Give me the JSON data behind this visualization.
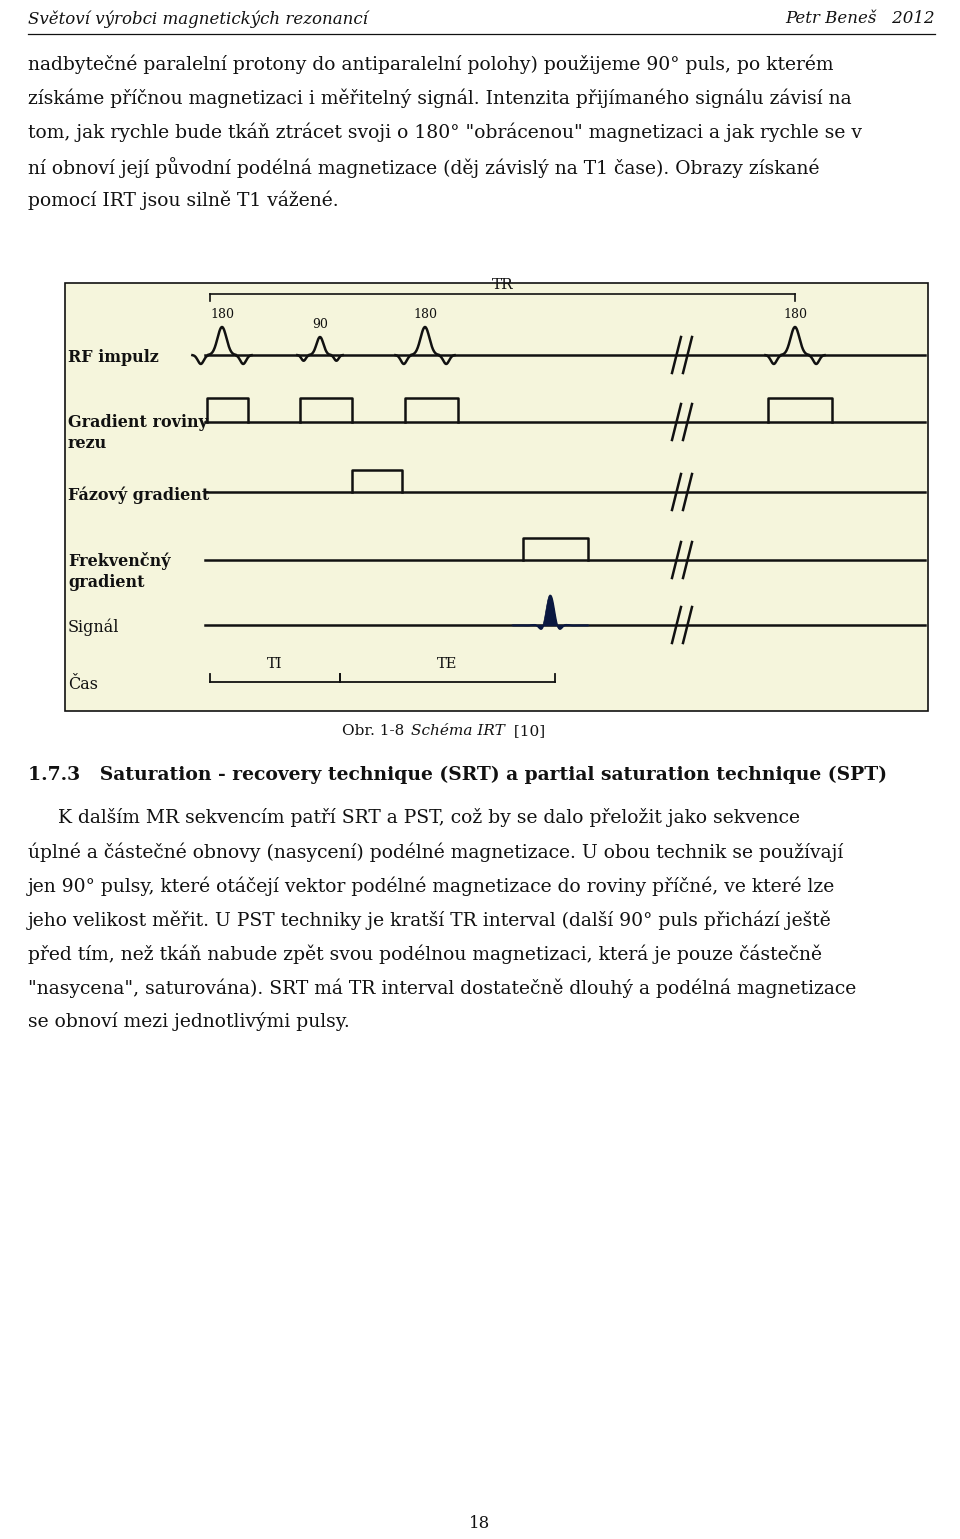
{
  "page_bg": "#ffffff",
  "diag_bg": "#f5f5dc",
  "dark": "#111111",
  "header_left": "Světoví výrobci magnetických rezonancí",
  "header_right": "Petr Beneš   2012",
  "body_lines": [
    "nadbytečné paralelní protony do antiparalelní polohy) použijeme 90° puls, po kterém",
    "získáme příčnou magnetizaci i měřitelný signál. Intenzita přijímaného signálu závisí na",
    "tom, jak rychle bude tkáň ztrácet svoji o 180° \"obrácenou\" magnetizaci a jak rychle se v",
    "ní obnoví její původní podélná magnetizace (děj závislý na T1 čase). Obrazy získané",
    "pomocí IRT jsou silně T1 vážené."
  ],
  "section_title": "1.7.3   Saturation - recovery technique (SRT) a partial saturation technique (SPT)",
  "section_body": [
    "     K dalším MR sekvencím patří SRT a PST, což by se dalo přeložit jako sekvence",
    "úplné a částečné obnovy (nasycení) podélné magnetizace. U obou technik se používají",
    "jen 90° pulsy, které otáčejí vektor podélné magnetizace do roviny příčné, ve které lze",
    "jeho velikost měřit. U PST techniky je kratší TR interval (další 90° puls přichází ještě",
    "před tím, než tkáň nabude zpět svou podélnou magnetizaci, která je pouze částečně",
    "\"nasycena\", saturována). SRT má TR interval dostatečně dlouhý a podélná magnetizace",
    "se obnoví mezi jednotlivými pulsy."
  ],
  "page_number": "18"
}
